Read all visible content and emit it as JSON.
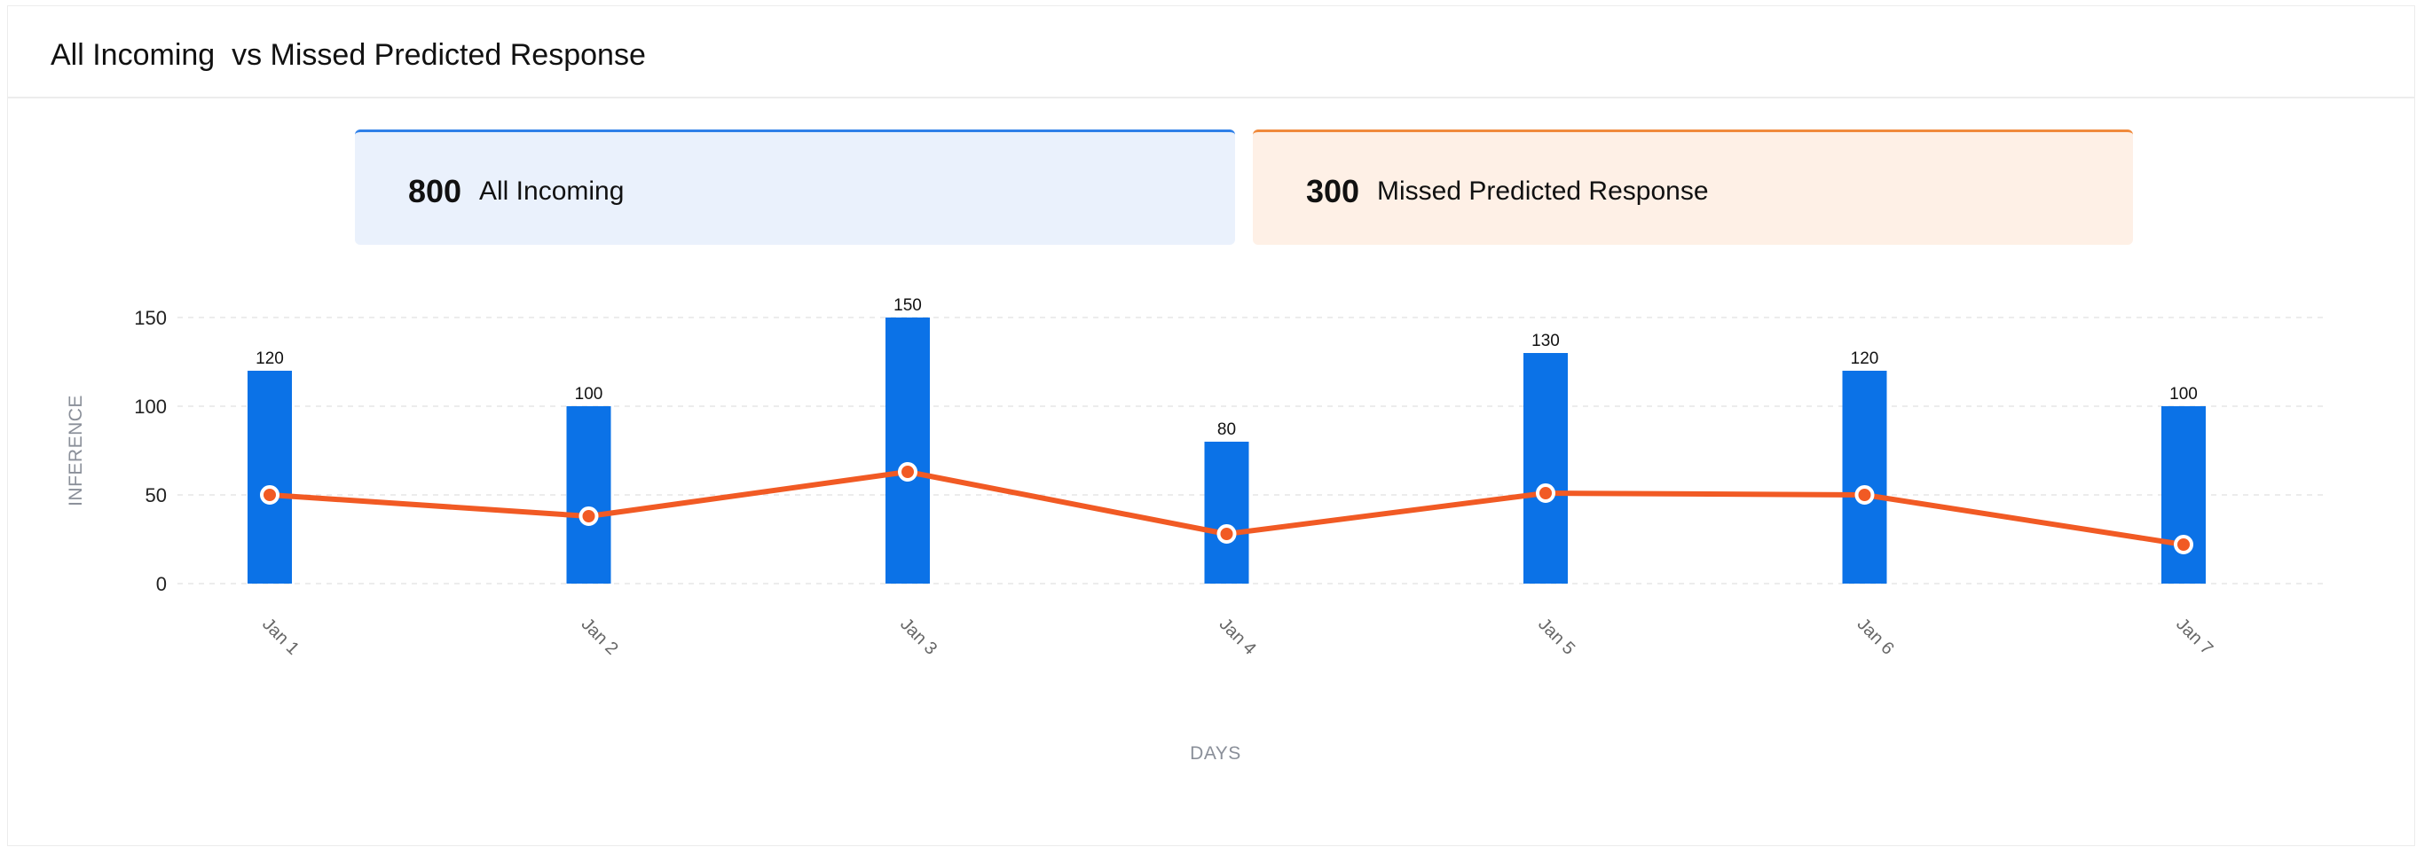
{
  "header": {
    "title": "All Incoming  vs Missed Predicted Response"
  },
  "summary": {
    "incoming": {
      "value": "800",
      "label": "All Incoming",
      "color": "#2f80e8"
    },
    "missed": {
      "value": "300",
      "label": "Missed Predicted Response",
      "color": "#f08a3c"
    }
  },
  "chart_data": {
    "type": "bar",
    "categories": [
      "Jan 1",
      "Jan 2",
      "Jan 3",
      "Jan 4",
      "Jan 5",
      "Jan 6",
      "Jan 7"
    ],
    "series": [
      {
        "type": "bar",
        "values": [
          120,
          100,
          150,
          80,
          130,
          120,
          100
        ],
        "color": "#0b72e7"
      },
      {
        "type": "line",
        "values": [
          50,
          38,
          63,
          28,
          51,
          50,
          22
        ],
        "color": "#f15a24"
      }
    ],
    "xlabel": "DAYS",
    "ylabel": "INFERENCE",
    "ylim": [
      0,
      150
    ],
    "yticks": [
      0,
      50,
      100,
      150
    ],
    "grid": true,
    "legend": "none"
  }
}
